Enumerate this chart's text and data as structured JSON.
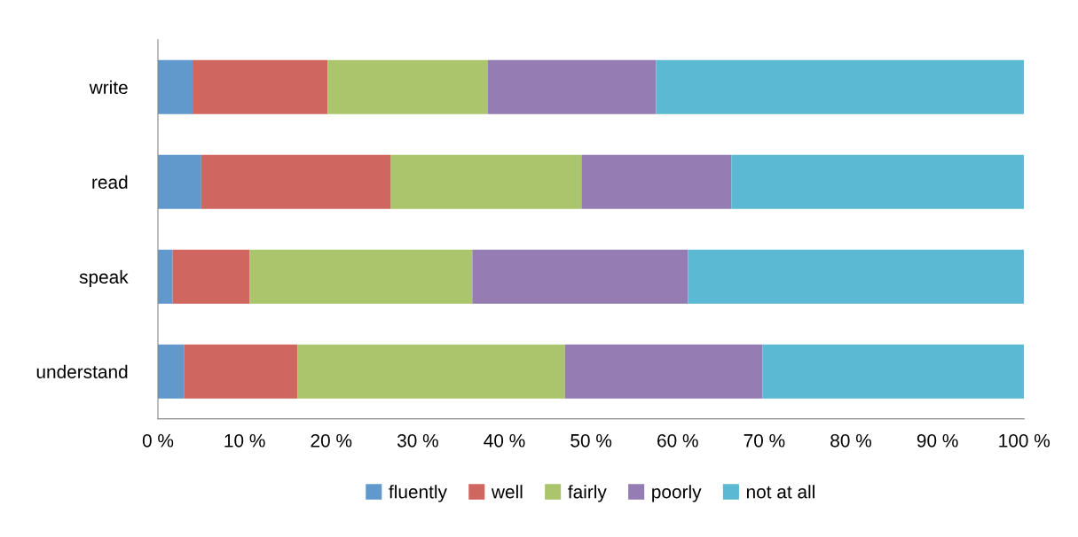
{
  "chart_data": {
    "type": "bar",
    "orientation": "horizontal",
    "stacked": true,
    "categories": [
      "write",
      "read",
      "speak",
      "understand"
    ],
    "series": [
      {
        "name": "fluently",
        "color": "#6199cd",
        "values": [
          4.0,
          5.0,
          1.7,
          3.0
        ]
      },
      {
        "name": "well",
        "color": "#cf665f",
        "values": [
          15.6,
          21.9,
          8.9,
          13.1
        ]
      },
      {
        "name": "fairly",
        "color": "#abc56c",
        "values": [
          18.5,
          22.0,
          25.7,
          30.9
        ]
      },
      {
        "name": "poorly",
        "color": "#957cb3",
        "values": [
          19.4,
          17.3,
          24.9,
          22.8
        ]
      },
      {
        "name": "not at all",
        "color": "#5bb9d3",
        "values": [
          42.5,
          33.8,
          38.8,
          30.2
        ]
      }
    ],
    "xlim": [
      0,
      100
    ],
    "xticks": [
      {
        "value": 0,
        "label": "0 %"
      },
      {
        "value": 10,
        "label": "10 %"
      },
      {
        "value": 20,
        "label": "20 %"
      },
      {
        "value": 30,
        "label": "30 %"
      },
      {
        "value": 40,
        "label": "40 %"
      },
      {
        "value": 50,
        "label": "50 %"
      },
      {
        "value": 60,
        "label": "60 %"
      },
      {
        "value": 70,
        "label": "70 %"
      },
      {
        "value": 80,
        "label": "80 %"
      },
      {
        "value": 90,
        "label": "90 %"
      },
      {
        "value": 100,
        "label": "100 %"
      }
    ],
    "grid": false,
    "legend": "bottom"
  }
}
